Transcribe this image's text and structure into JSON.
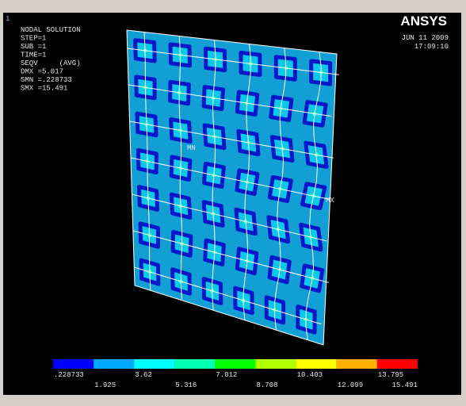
{
  "window_number": "1",
  "info": {
    "lines": [
      "NODAL SOLUTION",
      "STEP=1",
      "SUB =1",
      "TIME=1",
      "SEQV     (AVG)",
      "DMX =5.017",
      "SMN =.228733",
      "SMX =15.491"
    ]
  },
  "logo": "ANSYS",
  "date": "JUN 11 2009",
  "time": "17:09:10",
  "markers": {
    "min": "MN",
    "max": "MX"
  },
  "legend": {
    "colors": [
      "#0000ff",
      "#00a8ff",
      "#00ffff",
      "#00ffb0",
      "#00ff00",
      "#b0ff00",
      "#ffff00",
      "#ffb000",
      "#ff0000"
    ],
    "top_labels": [
      ".228733",
      "3.62",
      "7.012",
      "10.403",
      "13.795"
    ],
    "bottom_labels": [
      "1.925",
      "5.316",
      "8.708",
      "12.099",
      "15.491"
    ]
  }
}
